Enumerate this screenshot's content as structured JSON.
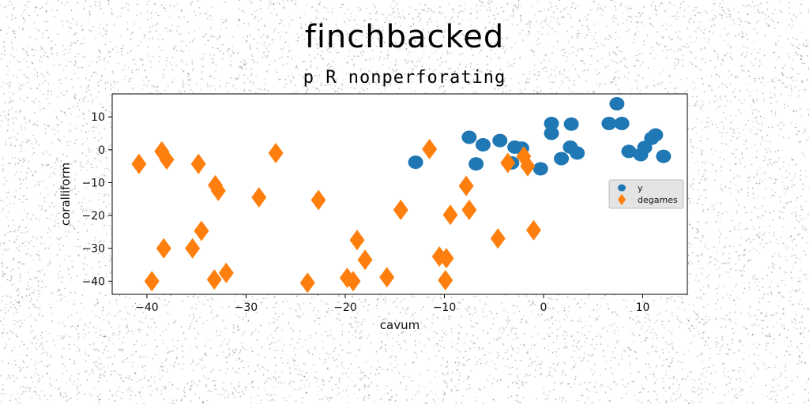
{
  "chart_data": {
    "type": "scatter",
    "title": "finchbacked",
    "subtitle": "p R nonperforating",
    "xlabel": "cavum",
    "ylabel": "coralliform",
    "xlim": [
      -43.5,
      14.5
    ],
    "ylim": [
      -44,
      17
    ],
    "xticks": [
      -40,
      -30,
      -20,
      -10,
      0,
      10
    ],
    "yticks": [
      10,
      0,
      -10,
      -20,
      -30,
      -40
    ],
    "xtick_labels": [
      "−40",
      "−30",
      "−20",
      "−10",
      "0",
      "10"
    ],
    "ytick_labels": [
      "10",
      "0",
      "−10",
      "−20",
      "−30",
      "−40"
    ],
    "grid": false,
    "legend_position": "center-right",
    "series": [
      {
        "name": "y",
        "marker": "circle",
        "color": "#1f77b4",
        "points": [
          [
            7.4,
            14
          ],
          [
            6.6,
            8
          ],
          [
            7.9,
            8
          ],
          [
            0.8,
            8
          ],
          [
            2.8,
            7.8
          ],
          [
            0.8,
            5
          ],
          [
            11.3,
            4.5
          ],
          [
            10.9,
            3.5
          ],
          [
            -7.5,
            3.8
          ],
          [
            -4.4,
            2.8
          ],
          [
            -6.1,
            1.5
          ],
          [
            -2.2,
            0.5
          ],
          [
            -2.9,
            0.8
          ],
          [
            2.7,
            0.8
          ],
          [
            3.4,
            -1
          ],
          [
            8.6,
            -0.5
          ],
          [
            10.2,
            0.7
          ],
          [
            9.8,
            -1.5
          ],
          [
            12.1,
            -2
          ],
          [
            1.8,
            -2.7
          ],
          [
            -12.9,
            -3.8
          ],
          [
            -6.8,
            -4.3
          ],
          [
            -3.2,
            -4
          ],
          [
            -0.3,
            -5.8
          ]
        ]
      },
      {
        "name": "degames",
        "marker": "diamond",
        "color": "#ff7f0e",
        "points": [
          [
            -38.5,
            -0.5
          ],
          [
            -38.0,
            -3.0
          ],
          [
            -40.8,
            -4.3
          ],
          [
            -34.8,
            -4.3
          ],
          [
            -27.0,
            -1.0
          ],
          [
            -11.5,
            0.2
          ],
          [
            -3.6,
            -4.0
          ],
          [
            -2.0,
            -2.0
          ],
          [
            -1.6,
            -5.0
          ],
          [
            -33.1,
            -10.8
          ],
          [
            -32.8,
            -12.5
          ],
          [
            -28.7,
            -14.5
          ],
          [
            -22.7,
            -15.3
          ],
          [
            -7.8,
            -11.0
          ],
          [
            -14.4,
            -18.3
          ],
          [
            -9.4,
            -19.8
          ],
          [
            -7.5,
            -18.3
          ],
          [
            -34.5,
            -24.7
          ],
          [
            -18.8,
            -27.5
          ],
          [
            -4.6,
            -27.0
          ],
          [
            -1.0,
            -24.5
          ],
          [
            -38.3,
            -30.0
          ],
          [
            -35.4,
            -30.0
          ],
          [
            -18.0,
            -33.5
          ],
          [
            -10.5,
            -32.5
          ],
          [
            -9.8,
            -33.0
          ],
          [
            -33.2,
            -39.5
          ],
          [
            -32.0,
            -37.5
          ],
          [
            -39.5,
            -40.0
          ],
          [
            -23.8,
            -40.5
          ],
          [
            -19.8,
            -39.0
          ],
          [
            -19.2,
            -40.0
          ],
          [
            -15.8,
            -38.8
          ],
          [
            -9.9,
            -39.7
          ]
        ]
      }
    ]
  }
}
